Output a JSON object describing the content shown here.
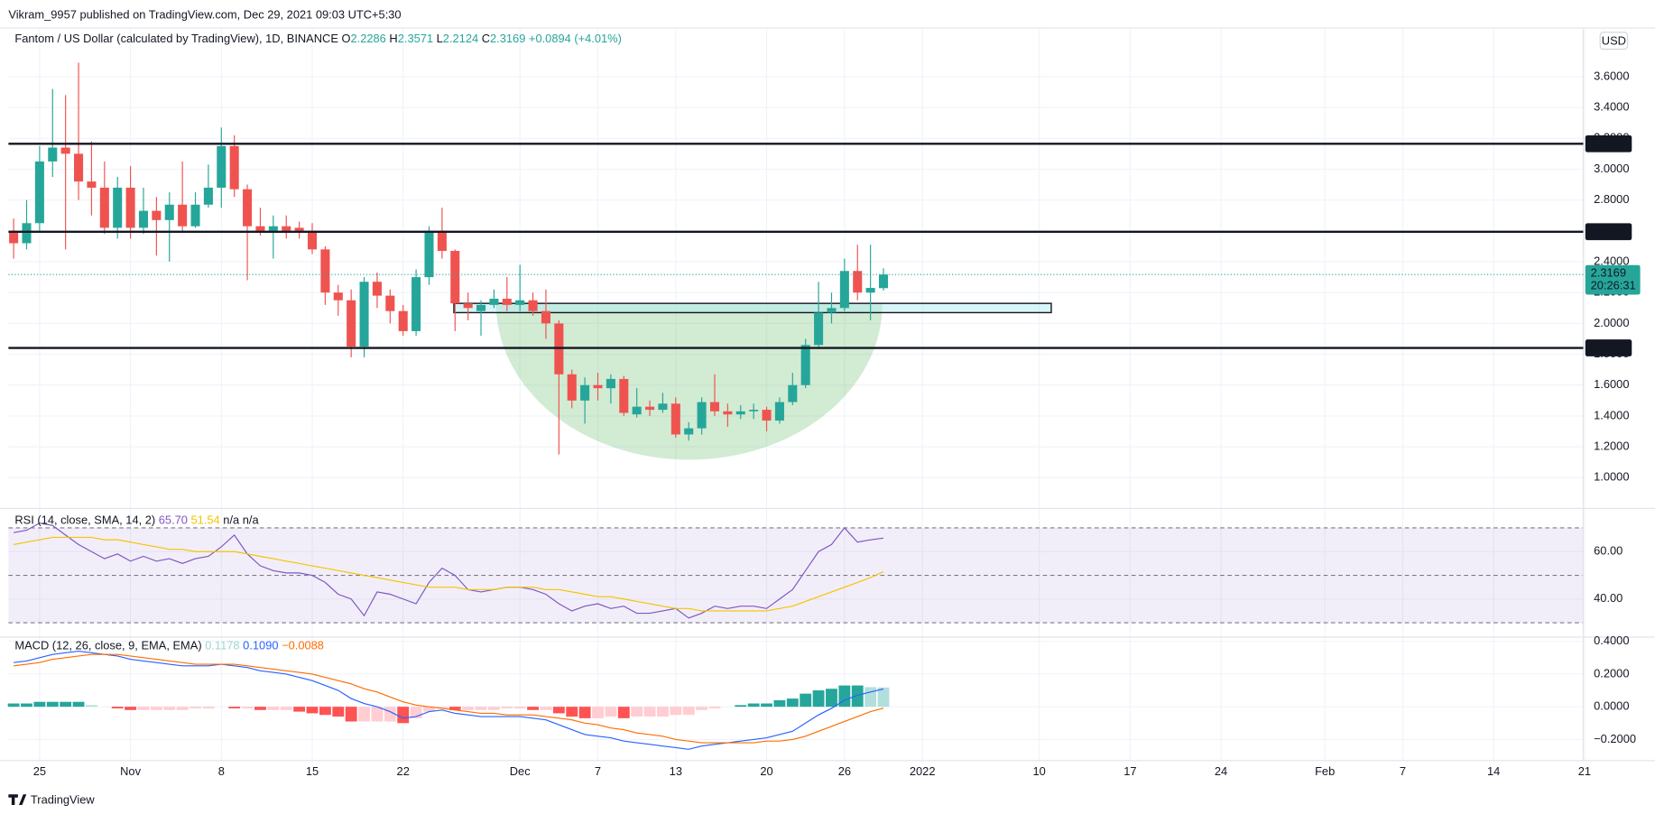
{
  "header": {
    "published": "Vikram_9957 published on TradingView.com, Dec 29, 2021 09:03 UTC+5:30",
    "currency": "USD",
    "brand": "TradingView"
  },
  "chart_data": [
    {
      "type": "candlestick",
      "title": "Fantom / US Dollar (calculated by TradingView), 1D, BINANCE",
      "legend": [
        {
          "key": "O",
          "value": 2.2286
        },
        {
          "key": "H",
          "value": 2.3571
        },
        {
          "key": "L",
          "value": 2.2124
        },
        {
          "key": "C",
          "value": 2.3169
        }
      ],
      "change": {
        "value": 0.0894,
        "label": "+0.0894"
      },
      "change_pct": {
        "value": 4.01,
        "label": "(+4.01%)"
      },
      "up_color": "#26a69a",
      "down_color": "#ef5350",
      "open": [
        2.6,
        2.52,
        2.65,
        3.05,
        3.14,
        3.1,
        2.92,
        2.88,
        2.62,
        2.88,
        2.62,
        2.73,
        2.67,
        2.77,
        2.63,
        2.77,
        2.88,
        3.15,
        2.87,
        2.63,
        2.6,
        2.63,
        2.62,
        2.6,
        2.48,
        2.2,
        2.15,
        1.85,
        2.27,
        2.18,
        2.08,
        1.95,
        2.3,
        2.6,
        2.47,
        2.13,
        2.08,
        2.12,
        2.16,
        2.12,
        2.15,
        2.08,
        2.0,
        1.67,
        1.5,
        1.6,
        1.58,
        1.64,
        1.41,
        1.46,
        1.44,
        1.48,
        1.28,
        1.32,
        1.49,
        1.43,
        1.41,
        1.43,
        1.44,
        1.37,
        1.49,
        1.6,
        1.86,
        2.07,
        2.1,
        2.34,
        2.2,
        2.2286
      ],
      "high": [
        2.68,
        2.8,
        3.15,
        3.52,
        3.48,
        3.69,
        3.18,
        3.05,
        2.95,
        3.02,
        2.88,
        2.82,
        2.85,
        3.05,
        2.85,
        3.03,
        3.27,
        3.22,
        2.9,
        2.75,
        2.7,
        2.7,
        2.66,
        2.65,
        2.5,
        2.25,
        2.22,
        2.3,
        2.33,
        2.22,
        2.12,
        2.35,
        2.63,
        2.75,
        2.48,
        2.2,
        2.15,
        2.22,
        2.3,
        2.38,
        2.2,
        2.22,
        2.02,
        1.7,
        1.65,
        1.68,
        1.67,
        1.66,
        1.58,
        1.5,
        1.55,
        1.52,
        1.36,
        1.52,
        1.67,
        1.48,
        1.47,
        1.48,
        1.46,
        1.52,
        1.68,
        1.9,
        2.27,
        2.2,
        2.42,
        2.51,
        2.51,
        2.3571
      ],
      "low": [
        2.42,
        2.48,
        2.6,
        2.95,
        2.48,
        2.8,
        2.7,
        2.58,
        2.55,
        2.55,
        2.58,
        2.44,
        2.4,
        2.6,
        2.62,
        2.75,
        2.75,
        2.82,
        2.28,
        2.57,
        2.42,
        2.55,
        2.55,
        2.45,
        2.12,
        2.05,
        1.78,
        1.78,
        2.1,
        2.0,
        1.92,
        1.92,
        2.25,
        2.42,
        1.95,
        2.02,
        1.92,
        2.1,
        2.08,
        2.08,
        2.05,
        1.9,
        1.15,
        1.45,
        1.35,
        1.5,
        1.48,
        1.4,
        1.39,
        1.4,
        1.42,
        1.26,
        1.24,
        1.28,
        1.4,
        1.33,
        1.38,
        1.38,
        1.3,
        1.35,
        1.47,
        1.58,
        1.84,
        2.0,
        2.08,
        2.15,
        2.02,
        2.2124
      ],
      "close": [
        2.52,
        2.65,
        3.05,
        3.14,
        3.1,
        2.92,
        2.88,
        2.62,
        2.88,
        2.62,
        2.73,
        2.67,
        2.77,
        2.63,
        2.77,
        2.88,
        3.15,
        2.87,
        2.63,
        2.6,
        2.63,
        2.6,
        2.6,
        2.48,
        2.2,
        2.15,
        1.85,
        2.27,
        2.18,
        2.08,
        1.95,
        2.3,
        2.6,
        2.47,
        2.13,
        2.1,
        2.12,
        2.16,
        2.12,
        2.15,
        2.08,
        2.0,
        1.67,
        1.5,
        1.6,
        1.58,
        1.64,
        1.42,
        1.46,
        1.44,
        1.48,
        1.28,
        1.32,
        1.49,
        1.43,
        1.41,
        1.43,
        1.44,
        1.37,
        1.49,
        1.6,
        1.86,
        2.07,
        2.1,
        2.34,
        2.2,
        2.23,
        2.3169
      ],
      "xlim": [
        -0.4,
        120.9
      ],
      "xticks": [
        {
          "value": 2,
          "label": "25"
        },
        {
          "value": 9,
          "label": "Nov"
        },
        {
          "value": 16,
          "label": "8"
        },
        {
          "value": 23,
          "label": "15"
        },
        {
          "value": 30,
          "label": "22"
        },
        {
          "value": 39,
          "label": "Dec"
        },
        {
          "value": 45,
          "label": "7"
        },
        {
          "value": 51,
          "label": "13"
        },
        {
          "value": 58,
          "label": "20"
        },
        {
          "value": 64,
          "label": "26"
        },
        {
          "value": 70,
          "label": "2022"
        },
        {
          "value": 79,
          "label": "10"
        },
        {
          "value": 86,
          "label": "17"
        },
        {
          "value": 93,
          "label": "24"
        },
        {
          "value": 101,
          "label": "Feb"
        },
        {
          "value": 107,
          "label": "7"
        },
        {
          "value": 114,
          "label": "14"
        },
        {
          "value": 121,
          "label": "21"
        }
      ],
      "ylim": [
        0.808,
        3.908
      ],
      "yticks": [
        {
          "value": 1.0,
          "label": "1.0000"
        },
        {
          "value": 1.2,
          "label": "1.2000"
        },
        {
          "value": 1.4,
          "label": "1.4000"
        },
        {
          "value": 1.6,
          "label": "1.6000"
        },
        {
          "value": 1.8,
          "label": "1.8000"
        },
        {
          "value": 2.0,
          "label": "2.0000"
        },
        {
          "value": 2.2,
          "label": "2.2000"
        },
        {
          "value": 2.4,
          "label": "2.4000"
        },
        {
          "value": 2.6,
          "label": "2.6000"
        },
        {
          "value": 2.8,
          "label": "2.8000"
        },
        {
          "value": 3.0,
          "label": "3.0000"
        },
        {
          "value": 3.2,
          "label": "3.2000"
        },
        {
          "value": 3.4,
          "label": "3.4000"
        },
        {
          "value": 3.6,
          "label": "3.6000"
        }
      ],
      "levels": [
        3.1648,
        2.5945,
        1.8412
      ],
      "zone": [
        2.07,
        2.13
      ],
      "last_price": 2.3169,
      "countdown": "20:26:31",
      "grid": true
    },
    {
      "type": "line",
      "title": "RSI (14, close, SMA, 14, 2)",
      "legend_values": [
        {
          "value": 65.7,
          "label": "65.70",
          "color": "#7e57c2"
        },
        {
          "value": 51.54,
          "label": "51.54",
          "color": "#f5c400"
        }
      ],
      "legend_tail": "n/a n/a",
      "series": [
        {
          "name": "RSI",
          "color": "#7e57c2",
          "values": [
            68,
            69,
            72,
            71,
            67,
            63,
            60,
            57,
            59,
            56,
            58,
            56,
            57,
            55,
            57,
            58,
            62,
            67,
            59,
            54,
            52,
            51,
            51,
            50,
            47,
            42,
            40,
            33,
            43,
            42,
            40,
            38,
            47,
            53,
            50,
            44,
            43,
            44,
            45,
            45,
            44,
            42,
            38,
            35,
            37,
            38,
            36,
            37,
            34,
            34,
            35,
            36,
            32,
            34,
            37,
            36,
            37,
            37,
            36,
            40,
            44,
            52,
            60,
            63,
            70,
            64,
            65,
            65.7
          ]
        },
        {
          "name": "SMA",
          "color": "#f5c400",
          "values": [
            63,
            64,
            65,
            66,
            66,
            66,
            66,
            65,
            65,
            64,
            63,
            62,
            61,
            61,
            60,
            60,
            60,
            60,
            59,
            58,
            57,
            56,
            55,
            54,
            53,
            52,
            51,
            50,
            49,
            48,
            47,
            46,
            45,
            45,
            45,
            44,
            44,
            44,
            45,
            45,
            45,
            44,
            44,
            43,
            42,
            41,
            41,
            40,
            39,
            38,
            37,
            36,
            36,
            35,
            35,
            35,
            35,
            35,
            35,
            36,
            37,
            39,
            41,
            43,
            45,
            47,
            49,
            51.54
          ]
        }
      ],
      "bands": [
        70,
        50,
        30
      ],
      "band_color": "#7e57c2",
      "ylim": [
        24.4,
        77.8
      ],
      "yticks": [
        {
          "value": 40,
          "label": "40.00"
        },
        {
          "value": 60,
          "label": "60.00"
        }
      ]
    },
    {
      "type": "macd",
      "title": "MACD (12, 26, close, 9, EMA, EMA)",
      "legend_values": [
        {
          "value": 0.1178,
          "label": "0.1178",
          "color": "#9ed6d2"
        },
        {
          "value": 0.109,
          "label": "0.1090",
          "color": "#2962ff"
        },
        {
          "value": -0.0088,
          "label": "−0.0088",
          "color": "#ff6d00"
        }
      ],
      "histogram": {
        "name": "Histogram",
        "colors": [
          "#26a69a",
          "#b2dfdb",
          "#ff5252",
          "#ffcdd2"
        ],
        "values": [
          0.02,
          0.02,
          0.03,
          0.03,
          0.03,
          0.03,
          0.01,
          0.0,
          -0.01,
          -0.02,
          -0.02,
          -0.02,
          -0.02,
          -0.02,
          -0.01,
          -0.01,
          0.0,
          -0.01,
          -0.01,
          -0.02,
          -0.02,
          -0.02,
          -0.03,
          -0.04,
          -0.05,
          -0.06,
          -0.09,
          -0.09,
          -0.09,
          -0.09,
          -0.1,
          -0.07,
          -0.03,
          -0.01,
          -0.02,
          -0.02,
          -0.02,
          -0.02,
          -0.01,
          -0.01,
          -0.02,
          -0.02,
          -0.04,
          -0.06,
          -0.07,
          -0.07,
          -0.06,
          -0.07,
          -0.06,
          -0.06,
          -0.06,
          -0.05,
          -0.05,
          -0.02,
          -0.01,
          0.0,
          0.01,
          0.02,
          0.02,
          0.04,
          0.05,
          0.08,
          0.1,
          0.11,
          0.13,
          0.13,
          0.12,
          0.1178
        ]
      },
      "series": [
        {
          "name": "MACD",
          "color": "#2962ff",
          "values": [
            0.27,
            0.28,
            0.3,
            0.32,
            0.33,
            0.34,
            0.33,
            0.32,
            0.31,
            0.29,
            0.28,
            0.27,
            0.26,
            0.25,
            0.25,
            0.25,
            0.26,
            0.25,
            0.24,
            0.22,
            0.21,
            0.2,
            0.18,
            0.16,
            0.13,
            0.1,
            0.05,
            0.02,
            0.0,
            -0.03,
            -0.07,
            -0.06,
            -0.03,
            -0.02,
            -0.04,
            -0.05,
            -0.06,
            -0.06,
            -0.06,
            -0.06,
            -0.07,
            -0.08,
            -0.11,
            -0.14,
            -0.17,
            -0.18,
            -0.19,
            -0.21,
            -0.22,
            -0.23,
            -0.24,
            -0.25,
            -0.26,
            -0.24,
            -0.23,
            -0.22,
            -0.21,
            -0.2,
            -0.19,
            -0.17,
            -0.15,
            -0.1,
            -0.05,
            -0.01,
            0.04,
            0.07,
            0.09,
            0.109
          ]
        },
        {
          "name": "Signal",
          "color": "#ff6d00",
          "values": [
            0.25,
            0.26,
            0.27,
            0.29,
            0.3,
            0.31,
            0.32,
            0.32,
            0.32,
            0.31,
            0.3,
            0.29,
            0.28,
            0.27,
            0.26,
            0.26,
            0.26,
            0.26,
            0.25,
            0.24,
            0.23,
            0.22,
            0.21,
            0.2,
            0.18,
            0.16,
            0.14,
            0.11,
            0.09,
            0.06,
            0.03,
            0.01,
            0.0,
            -0.01,
            -0.02,
            -0.03,
            -0.04,
            -0.04,
            -0.05,
            -0.05,
            -0.05,
            -0.06,
            -0.07,
            -0.08,
            -0.1,
            -0.11,
            -0.13,
            -0.14,
            -0.16,
            -0.17,
            -0.18,
            -0.2,
            -0.21,
            -0.22,
            -0.22,
            -0.22,
            -0.22,
            -0.22,
            -0.21,
            -0.21,
            -0.2,
            -0.18,
            -0.15,
            -0.12,
            -0.09,
            -0.06,
            -0.03,
            -0.0088
          ]
        }
      ],
      "ylim": [
        -0.329,
        0.419
      ],
      "yticks": [
        {
          "value": -0.2,
          "label": "−0.2000"
        },
        {
          "value": 0,
          "label": "0.0000"
        },
        {
          "value": 0.2,
          "label": "0.2000"
        },
        {
          "value": 0.4,
          "label": "0.4000"
        }
      ]
    }
  ]
}
